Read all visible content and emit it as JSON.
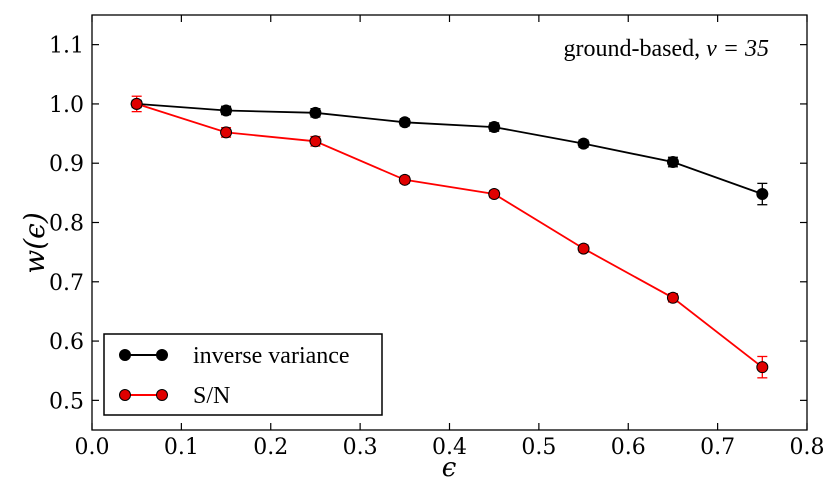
{
  "chart_data": {
    "type": "line",
    "title": "",
    "xlabel": "ϵ",
    "ylabel": "w(ϵ)",
    "xlim": [
      0.0,
      0.8
    ],
    "ylim": [
      0.45,
      1.15
    ],
    "xticks": [
      0.0,
      0.1,
      0.2,
      0.3,
      0.4,
      0.5,
      0.6,
      0.7,
      0.8
    ],
    "xtick_labels": [
      "0.0",
      "0.1",
      "0.2",
      "0.3",
      "0.4",
      "0.5",
      "0.6",
      "0.7",
      "0.8"
    ],
    "yticks": [
      0.5,
      0.6,
      0.7,
      0.8,
      0.9,
      1.0,
      1.1
    ],
    "ytick_labels": [
      "0.5",
      "0.6",
      "0.7",
      "0.8",
      "0.9",
      "1.0",
      "1.1"
    ],
    "grid": false,
    "annotation": {
      "text_prefix": "ground-based, ",
      "text_math": "ν = 35",
      "placement": "top-right"
    },
    "legend": {
      "placement": "bottom-left"
    },
    "x": [
      0.05,
      0.15,
      0.25,
      0.35,
      0.45,
      0.55,
      0.65,
      0.75
    ],
    "series": [
      {
        "name": "inverse variance",
        "color": "#000000",
        "marker_color": "#000000",
        "values": [
          1.0,
          0.989,
          0.985,
          0.969,
          0.961,
          0.933,
          0.902,
          0.848
        ],
        "errors": [
          0.006,
          0.007,
          0.007,
          0.006,
          0.007,
          0.006,
          0.008,
          0.018
        ]
      },
      {
        "name": "S/N",
        "color": "#ff0000",
        "marker_color": "#e00000",
        "values": [
          1.0,
          0.952,
          0.937,
          0.872,
          0.848,
          0.756,
          0.673,
          0.556
        ],
        "errors": [
          0.013,
          0.008,
          0.008,
          0.006,
          0.006,
          0.006,
          0.007,
          0.018
        ]
      }
    ]
  }
}
